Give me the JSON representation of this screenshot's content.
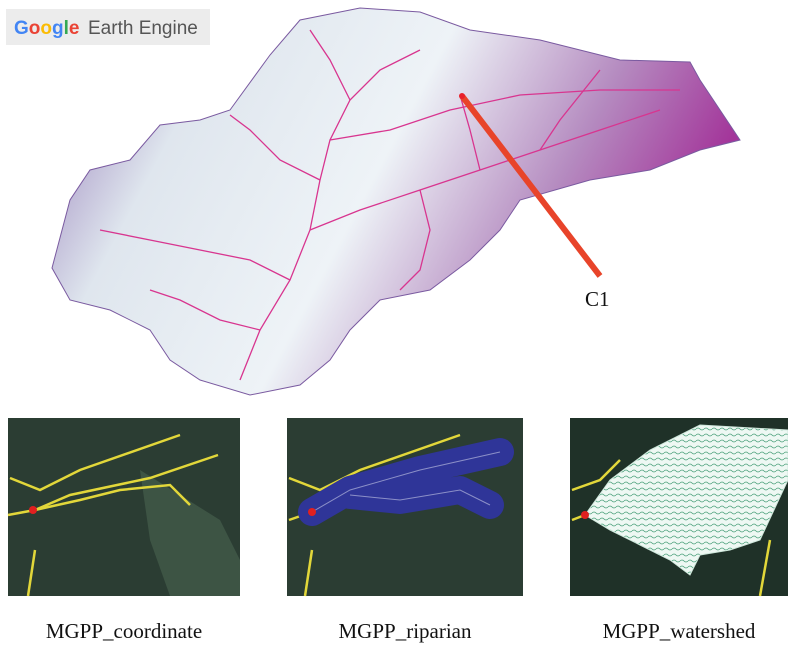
{
  "logo": {
    "brand": "Google",
    "product": "Earth Engine"
  },
  "map": {
    "point_label": "C1"
  },
  "panels": [
    {
      "caption": "MGPP_coordinate"
    },
    {
      "caption": "MGPP_riparian"
    },
    {
      "caption": "MGPP_watershed"
    }
  ]
}
